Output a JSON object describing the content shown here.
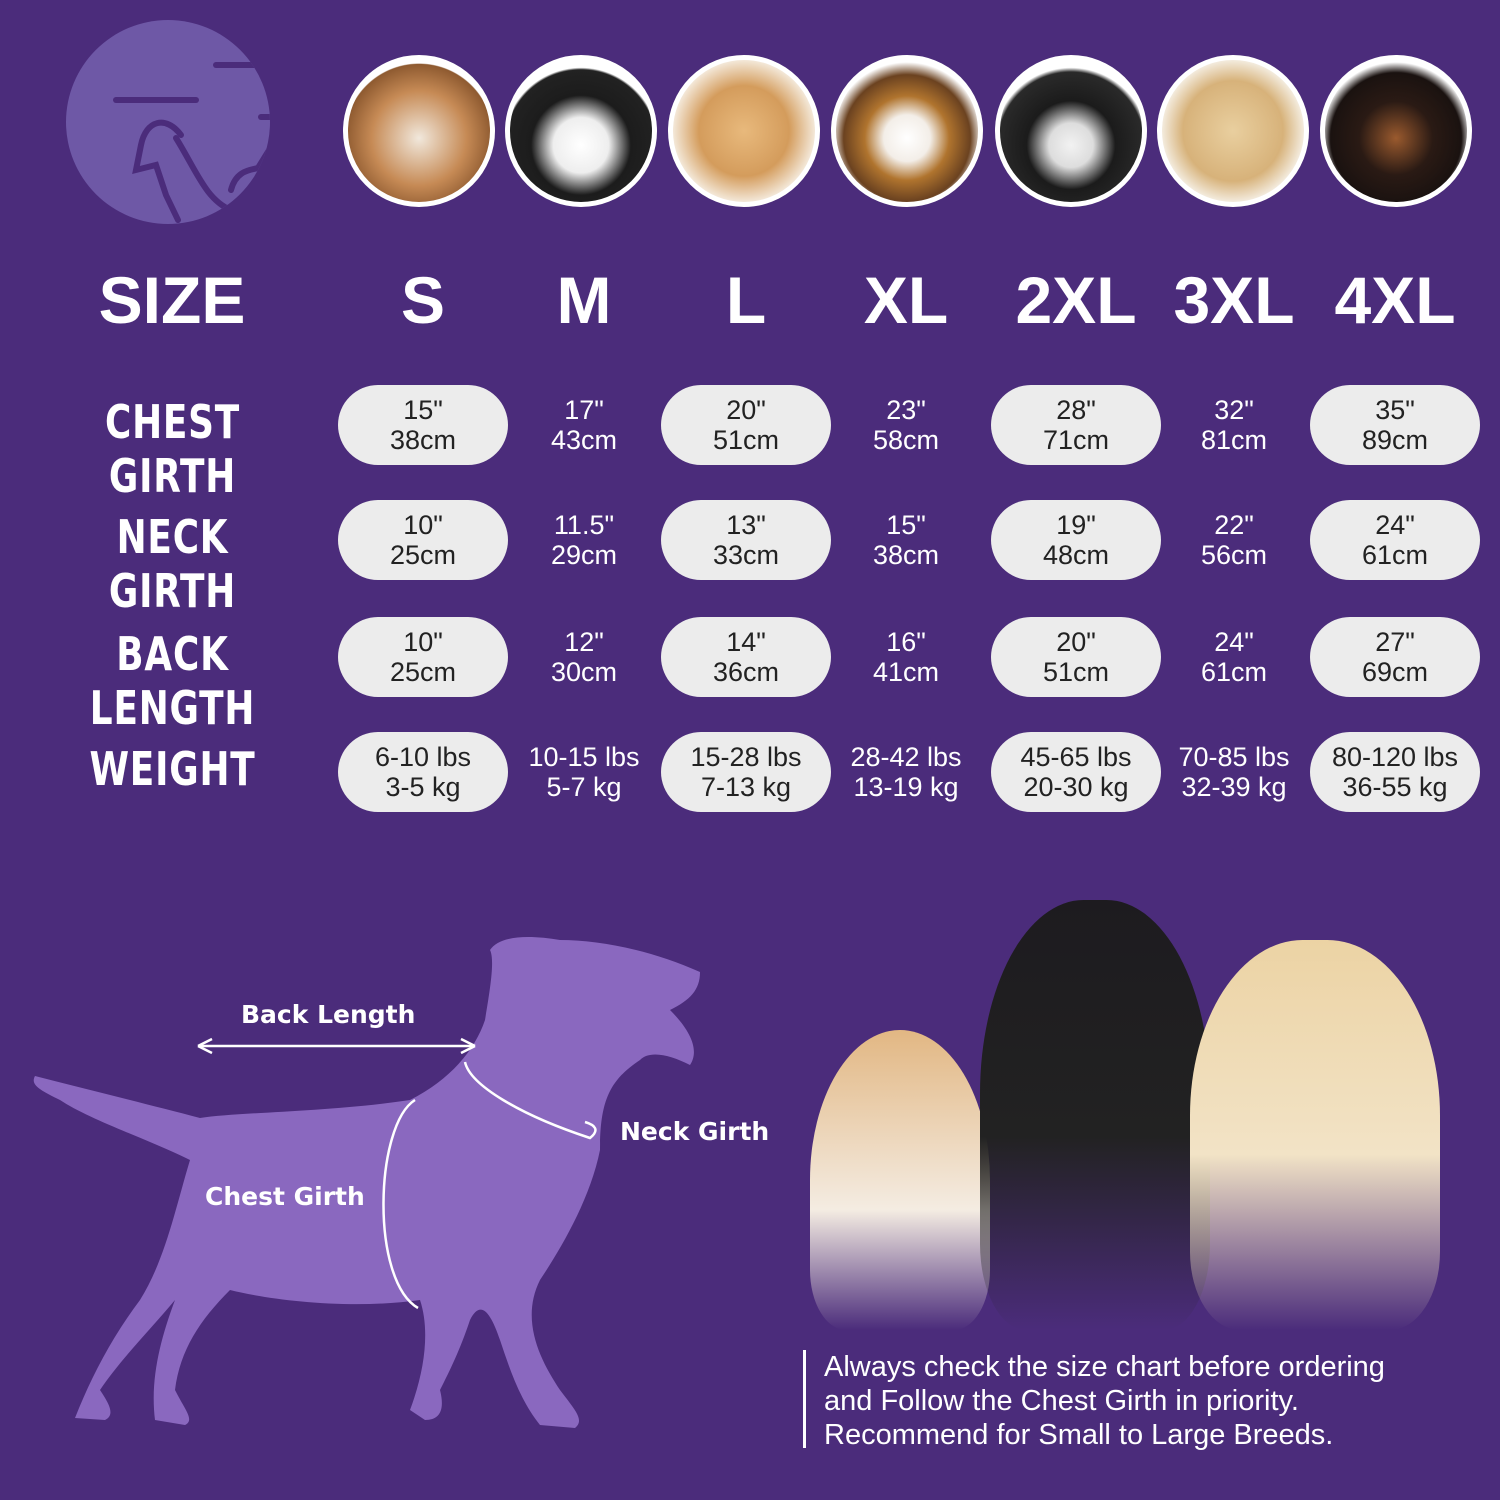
{
  "colors": {
    "background": "#4b2c7b",
    "pill": "#ececec",
    "silhouette": "#8a68bf",
    "logo": "#6e58a6"
  },
  "logo_icon": "dog-and-cat-icon",
  "header_label": "SIZE",
  "sizes": [
    "S",
    "M",
    "L",
    "XL",
    "2XL",
    "3XL",
    "4XL"
  ],
  "rows": [
    {
      "label": "CHEST GIRTH",
      "values": [
        [
          "15\"",
          "38cm"
        ],
        [
          "17\"",
          "43cm"
        ],
        [
          "20\"",
          "51cm"
        ],
        [
          "23\"",
          "58cm"
        ],
        [
          "28\"",
          "71cm"
        ],
        [
          "32\"",
          "81cm"
        ],
        [
          "35\"",
          "89cm"
        ]
      ]
    },
    {
      "label": "NECK GIRTH",
      "values": [
        [
          "10\"",
          "25cm"
        ],
        [
          "11.5\"",
          "29cm"
        ],
        [
          "13\"",
          "33cm"
        ],
        [
          "15\"",
          "38cm"
        ],
        [
          "19\"",
          "48cm"
        ],
        [
          "22\"",
          "56cm"
        ],
        [
          "24\"",
          "61cm"
        ]
      ]
    },
    {
      "label": "BACK LENGTH",
      "values": [
        [
          "10\"",
          "25cm"
        ],
        [
          "12\"",
          "30cm"
        ],
        [
          "14\"",
          "36cm"
        ],
        [
          "16\"",
          "41cm"
        ],
        [
          "20\"",
          "51cm"
        ],
        [
          "24\"",
          "61cm"
        ],
        [
          "27\"",
          "69cm"
        ]
      ]
    },
    {
      "label": "WEIGHT",
      "values": [
        [
          "6-10 lbs",
          "3-5 kg"
        ],
        [
          "10-15 lbs",
          "5-7 kg"
        ],
        [
          "15-28 lbs",
          "7-13 kg"
        ],
        [
          "28-42 lbs",
          "13-19 kg"
        ],
        [
          "45-65 lbs",
          "20-30 kg"
        ],
        [
          "70-85 lbs",
          "32-39 kg"
        ],
        [
          "80-120 lbs",
          "36-55 kg"
        ]
      ]
    }
  ],
  "diagram": {
    "back_length": "Back Length",
    "neck_girth": "Neck Girth",
    "chest_girth": "Chest Girth"
  },
  "note": [
    "Always check the size chart before ordering",
    "and Follow the Chest Girth in priority.",
    "Recommend for Small to Large Breeds."
  ]
}
